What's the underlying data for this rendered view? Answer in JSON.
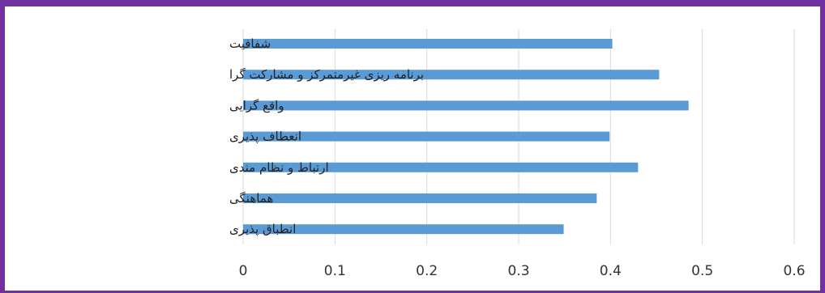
{
  "chart_data": {
    "type": "bar",
    "orientation": "horizontal",
    "title": "",
    "xlabel": "",
    "ylabel": "",
    "categories": [
      "شفافیت",
      "برنامه ریزی غیرمتمرکز و مشارکت گرا",
      "واقع گرایی",
      "انعطاف پذیری",
      "ارتباط و نظام مندی",
      "هماهنگی",
      "انطباق پذیری"
    ],
    "values": [
      0.402,
      0.453,
      0.485,
      0.399,
      0.43,
      0.385,
      0.349
    ],
    "xlim": [
      0,
      0.6
    ],
    "xticks": [
      "0",
      "0.1",
      "0.2",
      "0.3",
      "0.4",
      "0.5",
      "0.6"
    ],
    "grid": "vertical",
    "legend": "none",
    "bar_color": "#5b9bd5",
    "grid_color": "#d9d9d9"
  },
  "frame_color": "#7030a0"
}
